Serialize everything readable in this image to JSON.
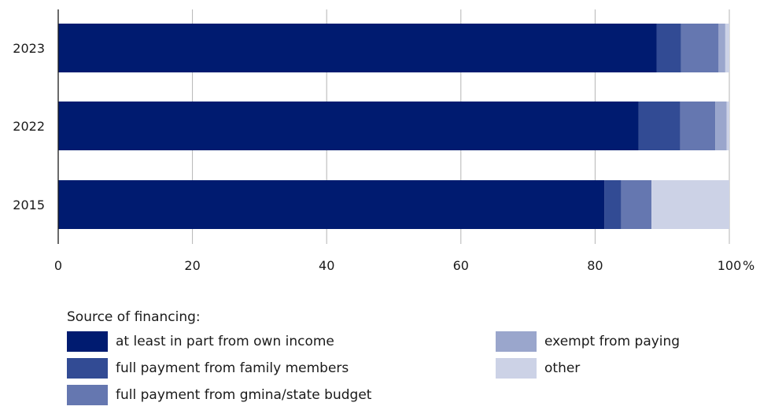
{
  "chart_data": {
    "type": "bar",
    "orientation": "horizontal",
    "stacked": true,
    "categories": [
      "2023",
      "2022",
      "2015"
    ],
    "xlim": [
      0,
      100
    ],
    "x_ticks": [
      "0",
      "20",
      "40",
      "60",
      "80",
      "100"
    ],
    "x_unit": "%",
    "grid": true,
    "legend_title": "Source of financing:",
    "legend_placement": "bottom",
    "series": [
      {
        "name": "at least in part from own income",
        "color": "#001b70",
        "values": [
          89.2,
          86.5,
          81.4
        ]
      },
      {
        "name": "full payment from family members",
        "color": "#324b94",
        "values": [
          3.6,
          6.2,
          2.5
        ]
      },
      {
        "name": "full payment from gmina/state budget",
        "color": "#6577b0",
        "values": [
          5.6,
          5.2,
          4.5
        ]
      },
      {
        "name": "exempt from paying",
        "color": "#9aa6cc",
        "values": [
          1.0,
          1.7,
          0.0
        ]
      },
      {
        "name": "other",
        "color": "#ccd2e6",
        "values": [
          0.6,
          0.4,
          11.6
        ]
      }
    ]
  }
}
